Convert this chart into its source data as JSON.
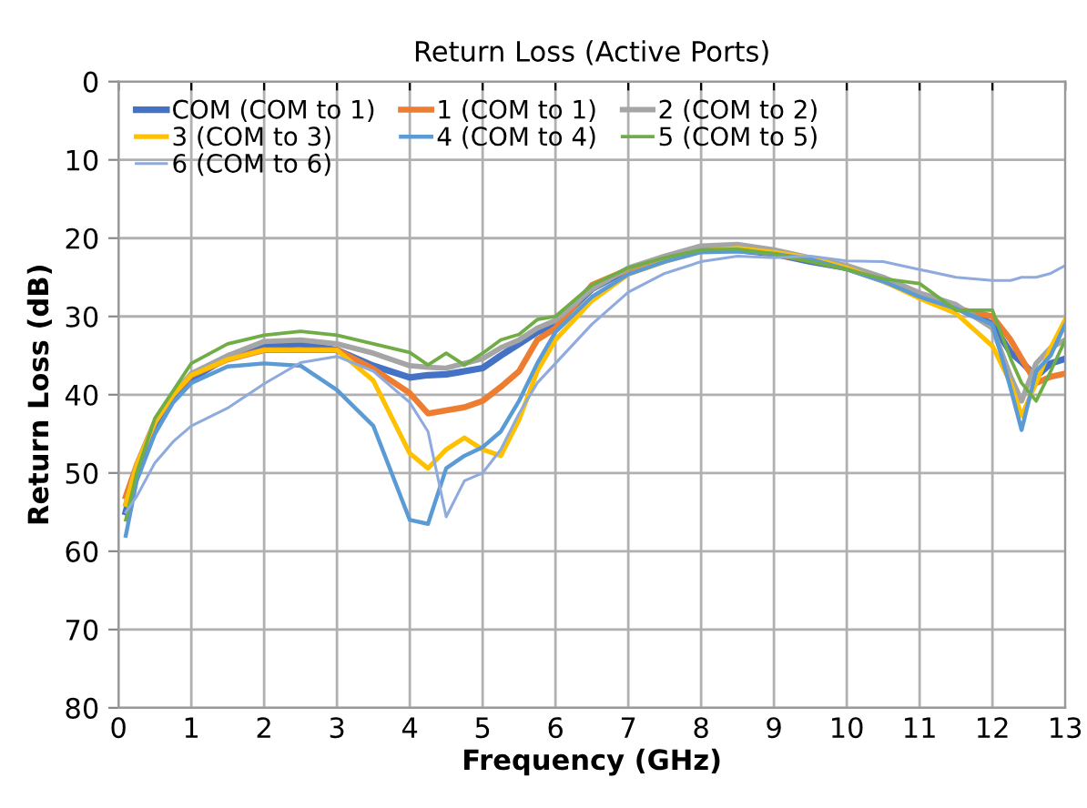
{
  "chart_data": {
    "type": "line",
    "title": "Return Loss (Active Ports)",
    "xlabel": "Frequency (GHz)",
    "ylabel": "Return Loss (dB)",
    "x": [
      0.1,
      0.25,
      0.5,
      0.75,
      1,
      1.5,
      2,
      2.5,
      3,
      3.5,
      4,
      4.25,
      4.5,
      4.75,
      5,
      5.25,
      5.5,
      5.75,
      6,
      6.5,
      7,
      7.5,
      8,
      8.5,
      9,
      9.5,
      10,
      10.5,
      11,
      11.5,
      12,
      12.25,
      12.4,
      12.6,
      12.8,
      13
    ],
    "series": [
      {
        "name": "COM (COM to 1)",
        "color": "#4472c4",
        "values": [
          55,
          50,
          44,
          40.5,
          38,
          35.2,
          33.8,
          33.5,
          34.3,
          36.3,
          37.8,
          37.5,
          37.4,
          37,
          36.6,
          35,
          33.5,
          32,
          31,
          26.5,
          24,
          22.7,
          21.5,
          21.5,
          22,
          23,
          23.8,
          25.4,
          27.3,
          28.8,
          31,
          34.6,
          35.8,
          37.7,
          36,
          35.4
        ]
      },
      {
        "name": "1 (COM to 1)",
        "color": "#ed7d31",
        "values": [
          53,
          49,
          43.5,
          40,
          37.5,
          35.5,
          34.3,
          34.3,
          34.3,
          36.7,
          39.8,
          42.4,
          42,
          41.6,
          40.8,
          39,
          37,
          33,
          31.5,
          26,
          24,
          22.5,
          21.5,
          21.3,
          22,
          22.8,
          23.8,
          25.4,
          27.3,
          29,
          30,
          33,
          35.4,
          38.5,
          37.7,
          37.3
        ]
      },
      {
        "name": "2 (COM to 2)",
        "color": "#a5a5a5",
        "values": [
          54,
          49,
          43.5,
          40,
          37.3,
          35,
          33.2,
          33,
          33.5,
          34.7,
          36.3,
          36.5,
          36.6,
          36,
          35.4,
          34,
          33,
          31.5,
          30.5,
          26.5,
          23.8,
          22.3,
          21,
          20.8,
          21.5,
          22.5,
          23.5,
          25,
          27,
          28.5,
          31.5,
          37.7,
          40.8,
          36,
          34,
          33
        ]
      },
      {
        "name": "3 (COM to 3)",
        "color": "#ffc000",
        "values": [
          54,
          49,
          43.5,
          40,
          37.5,
          35.5,
          34.3,
          34.3,
          34.3,
          38.2,
          47.5,
          49.4,
          47,
          45.5,
          47,
          47.8,
          43.2,
          37,
          33,
          28,
          24.6,
          23,
          21.7,
          21.3,
          21.8,
          22.5,
          23.8,
          25.5,
          27.7,
          29.6,
          33.8,
          38.5,
          42.7,
          38.5,
          34,
          30.4
        ]
      },
      {
        "name": "4 (COM to 4)",
        "color": "#5b9bd5",
        "values": [
          58,
          51,
          45,
          41,
          38.5,
          36.4,
          36,
          36.3,
          39.4,
          44,
          56,
          56.5,
          49.4,
          47.8,
          46.7,
          44.7,
          40.8,
          36,
          32,
          27.5,
          24.6,
          23,
          21.8,
          21.7,
          22,
          22.7,
          24,
          25.5,
          27.5,
          29,
          31,
          39.2,
          44.5,
          37,
          35,
          31
        ]
      },
      {
        "name": "5 (COM to 5)",
        "color": "#70ad47",
        "values": [
          56,
          50,
          43,
          39.5,
          36,
          33.5,
          32.4,
          31.9,
          32.4,
          33.5,
          34.6,
          36.2,
          34.7,
          36.2,
          34.7,
          33,
          32.3,
          30.4,
          30,
          26,
          23.8,
          22.5,
          21.5,
          21.4,
          22,
          23,
          24,
          25.2,
          25.8,
          29.2,
          29.2,
          35.4,
          38.5,
          40.8,
          37,
          33
        ]
      },
      {
        "name": "6 (COM to 6)",
        "color": "#8faadc",
        "values": [
          55,
          53,
          48.7,
          46,
          44,
          41.7,
          38.6,
          35.9,
          35.1,
          37,
          41,
          44.7,
          55.6,
          51,
          50,
          47,
          42.4,
          38.5,
          36,
          31,
          26.9,
          24.5,
          23,
          22.3,
          22.5,
          22.3,
          22.9,
          23,
          24,
          25,
          25.4,
          25.4,
          25,
          25,
          24.5,
          23.5
        ]
      }
    ],
    "xlim": [
      0,
      13
    ],
    "xticks": [
      0,
      1,
      2,
      3,
      4,
      5,
      6,
      7,
      8,
      9,
      10,
      11,
      12,
      13
    ],
    "ylim": [
      80,
      0
    ],
    "yticks": [
      0,
      10,
      20,
      30,
      40,
      50,
      60,
      70,
      80
    ],
    "grid": true,
    "legend": "top left",
    "marker": "none",
    "line_style": "solid"
  }
}
